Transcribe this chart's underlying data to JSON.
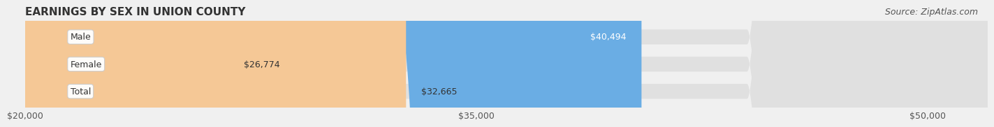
{
  "title": "EARNINGS BY SEX IN UNION COUNTY",
  "source": "Source: ZipAtlas.com",
  "categories": [
    "Male",
    "Female",
    "Total"
  ],
  "values": [
    40494,
    26774,
    32665
  ],
  "bar_colors": [
    "#6aade4",
    "#f4a8bf",
    "#f5c896"
  ],
  "bar_labels": [
    "$40,494",
    "$26,774",
    "$32,665"
  ],
  "label_inside": [
    true,
    false,
    false
  ],
  "xlim": [
    20000,
    52000
  ],
  "xticks": [
    20000,
    35000,
    50000
  ],
  "xtick_labels": [
    "$20,000",
    "$35,000",
    "$50,000"
  ],
  "background_color": "#f0f0f0",
  "bar_background_color": "#e8e8e8",
  "title_fontsize": 11,
  "source_fontsize": 9,
  "tick_fontsize": 9,
  "bar_label_fontsize": 9,
  "category_fontsize": 9,
  "bar_height": 0.55,
  "bar_edge_color": "none"
}
